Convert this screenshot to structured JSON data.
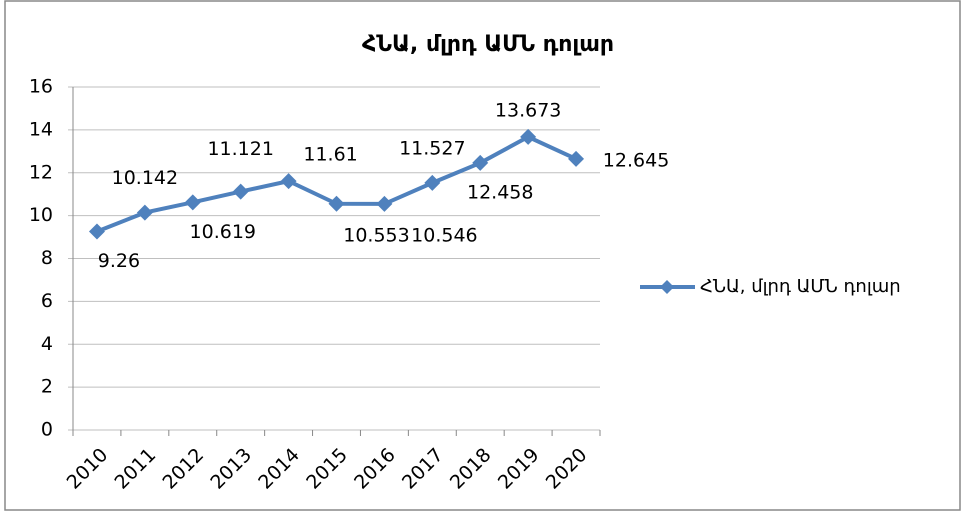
{
  "chart_data": {
    "type": "line",
    "title": "ՀՆԱ, մլրդ ԱՄՆ դոլար",
    "categories": [
      "2010",
      "2011",
      "2012",
      "2013",
      "2014",
      "2015",
      "2016",
      "2017",
      "2018",
      "2019",
      "2020"
    ],
    "series": [
      {
        "name": "ՀՆԱ, մլրդ ԱՄՆ դոլար",
        "color": "#4f81bd",
        "values": [
          9.26,
          10.142,
          10.619,
          11.121,
          11.61,
          10.553,
          10.546,
          11.527,
          12.458,
          13.673,
          12.645
        ]
      }
    ],
    "ylim": [
      0,
      16
    ],
    "yticks": [
      0,
      2,
      4,
      6,
      8,
      10,
      12,
      14,
      16
    ],
    "grid": true,
    "legend": "right"
  }
}
